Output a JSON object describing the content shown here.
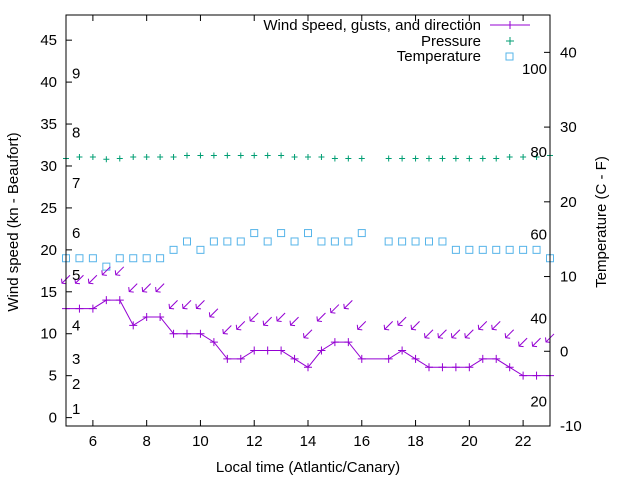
{
  "chart_data": {
    "type": "line",
    "xlabel": "Local time (Atlantic/Canary)",
    "ylabel": "Wind speed (kn - Beaufort)",
    "y2label": "Temperature (C - F)",
    "xlim": [
      5,
      23
    ],
    "ylim": [
      -1,
      48
    ],
    "y2lim": [
      -10,
      45
    ],
    "xticks": [
      6,
      8,
      10,
      12,
      14,
      16,
      18,
      20,
      22
    ],
    "yticks": [
      0,
      5,
      10,
      15,
      20,
      25,
      30,
      35,
      40,
      45
    ],
    "y2ticks": [
      -10,
      0,
      10,
      20,
      30,
      40
    ],
    "fahrenheit_labels": [
      {
        "label": "20",
        "celsius": -6.7
      },
      {
        "label": "40",
        "celsius": 4.4
      },
      {
        "label": "60",
        "celsius": 15.6
      },
      {
        "label": "80",
        "celsius": 26.7
      },
      {
        "label": "100",
        "celsius": 37.8
      }
    ],
    "beaufort_labels": [
      {
        "label": "1",
        "knots": 1
      },
      {
        "label": "2",
        "knots": 4
      },
      {
        "label": "3",
        "knots": 7
      },
      {
        "label": "4",
        "knots": 11
      },
      {
        "label": "5",
        "knots": 17
      },
      {
        "label": "6",
        "knots": 22
      },
      {
        "label": "7",
        "knots": 28
      },
      {
        "label": "8",
        "knots": 34
      },
      {
        "label": "9",
        "knots": 41
      }
    ],
    "legend_position": "top-right",
    "series": [
      {
        "name": "Wind speed, gusts, and direction",
        "color": "#9400d3",
        "marker": "plus",
        "x": [
          5,
          5.5,
          6,
          6.5,
          7,
          7.5,
          8,
          8.5,
          9,
          9.5,
          10,
          10.5,
          11,
          11.5,
          12,
          12.5,
          13,
          13.5,
          14,
          14.5,
          15,
          15.5,
          16,
          17,
          17.5,
          18,
          18.5,
          19,
          19.5,
          20,
          20.5,
          21,
          21.5,
          22,
          22.5,
          23
        ],
        "y": [
          13,
          13,
          13,
          14,
          14,
          11,
          12,
          12,
          10,
          10,
          10,
          9,
          7,
          7,
          8,
          8,
          8,
          7,
          6,
          8,
          9,
          9,
          7,
          7,
          8,
          7,
          6,
          6,
          6,
          6,
          7,
          7,
          6,
          5,
          5,
          5
        ],
        "gust_markers_y": [
          16.5,
          16.5,
          16.5,
          17.5,
          17.5,
          15.5,
          15.5,
          15.5,
          13.5,
          13.5,
          13.5,
          12.5,
          10.5,
          11.0,
          12.0,
          11.5,
          12.0,
          11.5,
          10.0,
          12.0,
          13.0,
          13.5,
          11.0,
          11.0,
          11.5,
          11.0,
          10.0,
          10.0,
          10.0,
          10.0,
          11.0,
          11.0,
          10.0,
          9.0,
          9.0,
          9.5
        ]
      },
      {
        "name": "Pressure",
        "color": "#009e73",
        "marker": "plus",
        "x": [
          5,
          5.5,
          6,
          6.5,
          7,
          7.5,
          8,
          8.5,
          9,
          9.5,
          10,
          10.5,
          11,
          11.5,
          12,
          12.5,
          13,
          13.5,
          14,
          14.5,
          15,
          15.5,
          16,
          17,
          17.5,
          18,
          18.5,
          19,
          19.5,
          20,
          20.5,
          21,
          21.5,
          22,
          22.5,
          23
        ],
        "y_celsius_axis": [
          25.8,
          26.0,
          26.0,
          25.7,
          25.8,
          26.0,
          26.0,
          26.0,
          26.0,
          26.2,
          26.2,
          26.2,
          26.2,
          26.2,
          26.2,
          26.2,
          26.2,
          26.0,
          26.0,
          26.0,
          25.8,
          25.8,
          25.8,
          25.8,
          25.8,
          25.8,
          25.8,
          25.8,
          25.8,
          25.8,
          25.8,
          25.8,
          26.0,
          26.0,
          26.0,
          26.2
        ]
      },
      {
        "name": "Temperature",
        "color": "#56b4e9",
        "marker": "square",
        "x": [
          5,
          5.5,
          6,
          6.5,
          7,
          7.5,
          8,
          8.5,
          9,
          9.5,
          10,
          10.5,
          11,
          11.5,
          12,
          12.5,
          13,
          13.5,
          14,
          14.5,
          15,
          15.5,
          16,
          17,
          17.5,
          18,
          18.5,
          19,
          19.5,
          20,
          20.5,
          21,
          21.5,
          22,
          22.5,
          23
        ],
        "y": [
          19,
          19,
          19,
          18,
          19,
          19,
          19,
          19,
          20,
          21,
          20,
          21,
          21,
          21,
          22,
          21,
          22,
          21,
          22,
          21,
          21,
          21,
          22,
          21,
          21,
          21,
          21,
          21,
          20,
          20,
          20,
          20,
          20,
          20,
          20,
          19
        ]
      }
    ]
  }
}
